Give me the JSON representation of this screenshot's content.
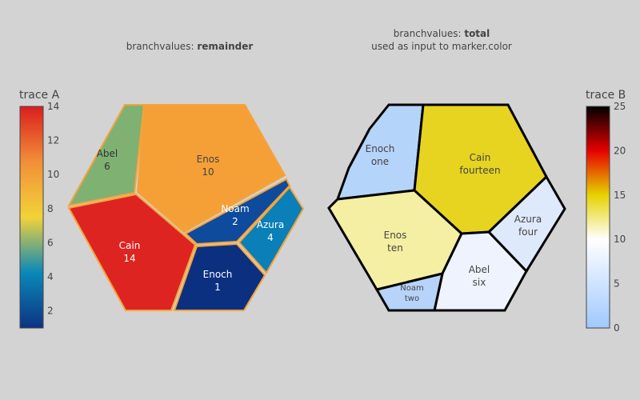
{
  "chart_data": [
    {
      "type": "voronoi-treemap",
      "trace": "trace A",
      "title": {
        "prefix": "branchvalues: ",
        "bold": "remainder",
        "line2": ""
      },
      "branchvalues": "remainder",
      "cells": [
        {
          "label": "Enos",
          "value": 10,
          "value_text": "10",
          "color_value": 10
        },
        {
          "label": "Abel",
          "value": 6,
          "value_text": "6",
          "color_value": 6
        },
        {
          "label": "Cain",
          "value": 14,
          "value_text": "14",
          "color_value": 14
        },
        {
          "label": "Noam",
          "value": 2,
          "value_text": "2",
          "color_value": 2
        },
        {
          "label": "Azura",
          "value": 4,
          "value_text": "4",
          "color_value": 4
        },
        {
          "label": "Enoch",
          "value": 1,
          "value_text": "1",
          "color_value": 1
        }
      ],
      "colorbar": {
        "title": "trace A",
        "colorscale": "Portland",
        "range": [
          1,
          14
        ],
        "ticks": [
          2,
          4,
          6,
          8,
          10,
          12,
          14
        ]
      }
    },
    {
      "type": "voronoi-treemap",
      "trace": "trace B",
      "title": {
        "prefix": "branchvalues: ",
        "bold": "total",
        "line2": "used as input to marker.color"
      },
      "branchvalues": "total",
      "cells": [
        {
          "label": "Enoch",
          "value_text": "one",
          "color_value": 1
        },
        {
          "label": "Cain",
          "value_text": "fourteen",
          "color_value": 14
        },
        {
          "label": "Enos",
          "value_text": "ten",
          "color_value": 10
        },
        {
          "label": "Azura",
          "value_text": "four",
          "color_value": 4
        },
        {
          "label": "Abel",
          "value_text": "six",
          "color_value": 6
        },
        {
          "label": "Noam",
          "value_text": "two",
          "color_value": 2
        }
      ],
      "colorbar": {
        "title": "trace B",
        "colorscale": "Hot-reversed",
        "range": [
          0,
          25
        ],
        "ticks": [
          0,
          5,
          10,
          15,
          20,
          25
        ]
      }
    }
  ]
}
